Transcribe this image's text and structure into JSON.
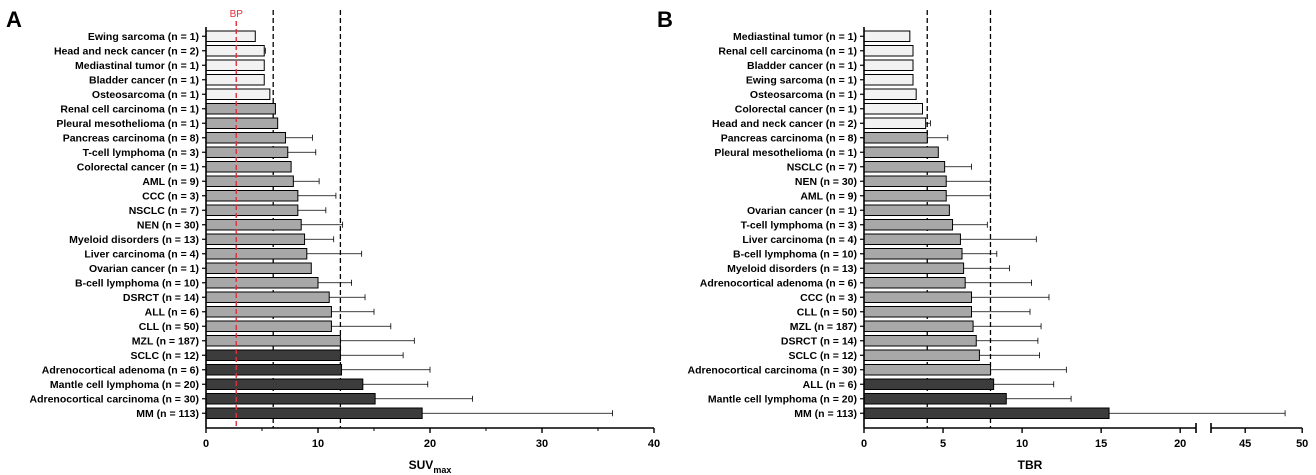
{
  "chart_data": [
    {
      "type": "bar",
      "orientation": "horizontal",
      "panel_label": "A",
      "xlabel": "SUV",
      "xlabel_subscript": "max",
      "xlim": [
        0,
        40
      ],
      "xticks": [
        0,
        10,
        20,
        30,
        40
      ],
      "grid": false,
      "dashed_lines": [
        6,
        12
      ],
      "reference_line": {
        "value": 2.7,
        "label": "BP",
        "color": "#e0303a"
      },
      "categories": [
        "Ewing sarcoma (n = 1)",
        "Head and neck cancer (n = 2)",
        "Mediastinal tumor (n = 1)",
        "Bladder cancer (n = 1)",
        "Osteosarcoma (n = 1)",
        "Renal cell carcinoma (n = 1)",
        "Pleural mesothelioma (n = 1)",
        "Pancreas carcinoma (n = 8)",
        "T-cell lymphoma (n = 3)",
        "Colorectal cancer (n = 1)",
        "AML (n = 9)",
        "CCC (n = 3)",
        "NSCLC (n = 7)",
        "NEN (n = 30)",
        "Myeloid disorders (n = 13)",
        "Liver carcinoma (n = 4)",
        "Ovarian cancer (n = 1)",
        "B-cell lymphoma (n = 10)",
        "DSRCT (n = 14)",
        "ALL (n = 6)",
        "CLL (n = 50)",
        "MZL (n = 187)",
        "SCLC (n = 12)",
        "Adrenocortical adenoma (n = 6)",
        "Mantle cell lymphoma (n = 20)",
        "Adrenocortical carcinoma (n = 30)",
        "MM (n = 113)"
      ],
      "values": [
        4.4,
        5.2,
        5.2,
        5.2,
        5.7,
        6.2,
        6.4,
        7.1,
        7.3,
        7.6,
        7.8,
        8.2,
        8.2,
        8.5,
        8.8,
        9.0,
        9.4,
        10.0,
        11.0,
        11.2,
        11.2,
        12.0,
        12.0,
        12.1,
        14.0,
        15.1,
        19.3
      ],
      "errors": [
        0,
        0.1,
        0,
        0,
        0,
        0,
        0,
        2.4,
        2.5,
        0,
        2.3,
        3.4,
        2.5,
        3.7,
        2.6,
        4.9,
        0,
        3.0,
        3.2,
        3.8,
        5.3,
        6.6,
        5.6,
        7.9,
        5.8,
        8.7,
        17.0
      ],
      "fills": [
        "#f2f2f2",
        "#f2f2f2",
        "#f2f2f2",
        "#f2f2f2",
        "#f2f2f2",
        "#a8a8a8",
        "#a8a8a8",
        "#a8a8a8",
        "#a8a8a8",
        "#a8a8a8",
        "#a8a8a8",
        "#a8a8a8",
        "#a8a8a8",
        "#a8a8a8",
        "#a8a8a8",
        "#a8a8a8",
        "#a8a8a8",
        "#a8a8a8",
        "#a8a8a8",
        "#a8a8a8",
        "#a8a8a8",
        "#a8a8a8",
        "#3c3c3c",
        "#3c3c3c",
        "#3c3c3c",
        "#3c3c3c",
        "#3c3c3c"
      ]
    },
    {
      "type": "bar",
      "orientation": "horizontal",
      "panel_label": "B",
      "xlabel": "TBR",
      "xlim": [
        0,
        50
      ],
      "axis_break": [
        21,
        42
      ],
      "xticks": [
        0,
        5,
        10,
        15,
        20,
        45,
        50
      ],
      "grid": false,
      "dashed_lines": [
        4,
        8
      ],
      "categories": [
        "Mediastinal tumor (n = 1)",
        "Renal cell carcinoma (n = 1)",
        "Bladder cancer (n = 1)",
        "Ewing sarcoma (n = 1)",
        "Osteosarcoma (n = 1)",
        "Colorectal cancer (n = 1)",
        "Head and neck cancer (n = 2)",
        "Pancreas carcinoma (n = 8)",
        "Pleural mesothelioma (n = 1)",
        "NSCLC (n = 7)",
        "NEN (n = 30)",
        "AML (n = 9)",
        "Ovarian cancer (n = 1)",
        "T-cell lymphoma (n = 3)",
        "Liver carcinoma (n = 4)",
        "B-cell lymphoma (n = 10)",
        "Myeloid disorders (n = 13)",
        "Adrenocortical adenoma (n = 6)",
        "CCC (n = 3)",
        "CLL (n = 50)",
        "MZL (n = 187)",
        "DSRCT (n = 14)",
        "SCLC (n = 12)",
        "Adrenocortical carcinoma (n = 30)",
        "ALL (n = 6)",
        "Mantle cell lymphoma (n = 20)",
        "MM (n = 113)"
      ],
      "values": [
        2.9,
        3.1,
        3.1,
        3.1,
        3.3,
        3.7,
        3.9,
        4.0,
        4.7,
        5.1,
        5.2,
        5.2,
        5.4,
        5.6,
        6.1,
        6.2,
        6.3,
        6.4,
        6.8,
        6.8,
        6.9,
        7.1,
        7.3,
        8.0,
        8.2,
        9.0,
        15.5
      ],
      "errors": [
        0,
        0,
        0,
        0,
        0,
        0,
        0.3,
        1.3,
        0,
        1.7,
        2.8,
        2.8,
        0,
        2.2,
        4.8,
        2.2,
        2.9,
        4.2,
        4.9,
        3.7,
        4.3,
        3.9,
        3.8,
        4.8,
        3.8,
        4.1,
        33.0
      ],
      "fills": [
        "#f2f2f2",
        "#f2f2f2",
        "#f2f2f2",
        "#f2f2f2",
        "#f2f2f2",
        "#f2f2f2",
        "#f2f2f2",
        "#a8a8a8",
        "#a8a8a8",
        "#a8a8a8",
        "#a8a8a8",
        "#a8a8a8",
        "#a8a8a8",
        "#a8a8a8",
        "#a8a8a8",
        "#a8a8a8",
        "#a8a8a8",
        "#a8a8a8",
        "#a8a8a8",
        "#a8a8a8",
        "#a8a8a8",
        "#a8a8a8",
        "#a8a8a8",
        "#a8a8a8",
        "#3c3c3c",
        "#3c3c3c",
        "#3c3c3c"
      ]
    }
  ]
}
